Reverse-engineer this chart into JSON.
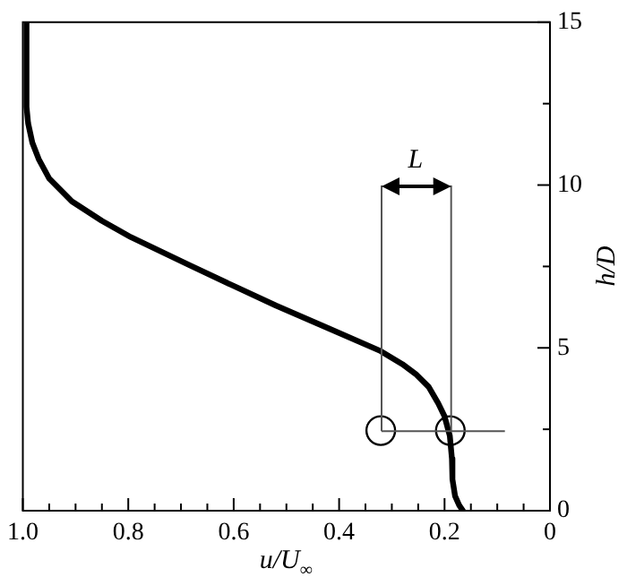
{
  "chart_data": {
    "type": "line",
    "xlabel": "u/U$_{∞}$",
    "ylabel": "h/D",
    "x": [
      0.993,
      0.993,
      0.99,
      0.982,
      0.97,
      0.95,
      0.907,
      0.85,
      0.795,
      0.685,
      0.6,
      0.52,
      0.42,
      0.321,
      0.28,
      0.255,
      0.23,
      0.212,
      0.2,
      0.19,
      0.186,
      0.185,
      0.18,
      0.172,
      0.165
    ],
    "series": [
      {
        "color": "#000000",
        "values": [
          15,
          12.4,
          11.9,
          11.3,
          10.8,
          10.2,
          9.5,
          8.9,
          8.4,
          7.55,
          6.9,
          6.3,
          5.6,
          4.9,
          4.5,
          4.2,
          3.8,
          3.3,
          2.9,
          2.3,
          1.6,
          0.96,
          0.45,
          0.16,
          0
        ]
      },
      {
        "type": "scatter",
        "marker": "circle",
        "color": "#000000",
        "x": [
          0.321,
          0.189
        ],
        "values": [
          2.46,
          2.46
        ]
      }
    ],
    "xlim": [
      1,
      0
    ],
    "ylim": [
      0,
      15
    ],
    "xticks": [
      {
        "value": 1,
        "label": "1.0"
      },
      {
        "value": 0.95,
        "label": null
      },
      {
        "value": 0.9,
        "label": null
      },
      {
        "value": 0.85,
        "label": null
      },
      {
        "value": 0.8,
        "label": "0.8"
      },
      {
        "value": 0.75,
        "label": null
      },
      {
        "value": 0.7,
        "label": null
      },
      {
        "value": 0.65,
        "label": null
      },
      {
        "value": 0.6,
        "label": "0.6"
      },
      {
        "value": 0.55,
        "label": null
      },
      {
        "value": 0.5,
        "label": null
      },
      {
        "value": 0.45,
        "label": null
      },
      {
        "value": 0.4,
        "label": "0.4"
      },
      {
        "value": 0.35,
        "label": null
      },
      {
        "value": 0.3,
        "label": null
      },
      {
        "value": 0.25,
        "label": null
      },
      {
        "value": 0.2,
        "label": "0.2"
      },
      {
        "value": 0.15,
        "label": null
      },
      {
        "value": 0.1,
        "label": null
      },
      {
        "value": 0.05,
        "label": null
      },
      0
    ],
    "yticks": [
      0,
      {
        "value": 2.5,
        "label": null
      },
      5,
      {
        "value": 7.5,
        "label": null
      },
      10,
      {
        "value": 12.5,
        "label": null
      },
      15
    ],
    "annotations": [
      "L"
    ],
    "grid": false,
    "legend": false,
    "marker": "none",
    "line_style": "solid"
  }
}
